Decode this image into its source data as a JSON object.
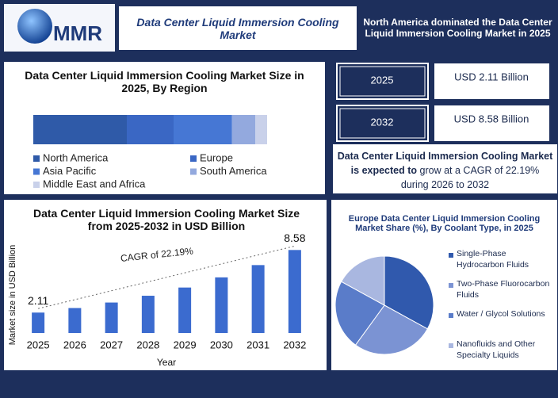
{
  "header": {
    "logo": "MMR",
    "title": "Data Center Liquid Immersion Cooling Market",
    "highlight": "North America dominated the Data Center Liquid Immersion Cooling Market  in 2025"
  },
  "stats": [
    {
      "year": "2025",
      "value": "USD 2.11 Billion"
    },
    {
      "year": "2032",
      "value": "USD 8.58 Billion"
    }
  ],
  "cagr_note": {
    "bold": "Data Center Liquid Immersion Cooling Market is expected to",
    "rest": "grow at a CAGR of 22.19% during 2026 to 2032"
  },
  "chart_data": [
    {
      "type": "bar",
      "orientation": "horizontal",
      "stacked": true,
      "title": "Data Center Liquid Immersion Cooling Market Size in 2025, By Region",
      "xlim": [
        0,
        100
      ],
      "series": [
        {
          "name": "North America",
          "color": "#2f5aa8",
          "values": [
            40
          ]
        },
        {
          "name": "Europe",
          "color": "#3a67c4",
          "values": [
            20
          ]
        },
        {
          "name": "Asia Pacific",
          "color": "#4677d4",
          "values": [
            25
          ]
        },
        {
          "name": "South America",
          "color": "#93a9de",
          "values": [
            10
          ]
        },
        {
          "name": "Middle East and Africa",
          "color": "#c9d1ea",
          "values": [
            5
          ]
        }
      ]
    },
    {
      "type": "bar",
      "title": "Data Center Liquid Immersion Cooling Market Size from 2025-2032 in USD Billion",
      "x_label": "Year",
      "y_label": "Market size in USD Billion",
      "categories": [
        "2025",
        "2026",
        "2027",
        "2028",
        "2029",
        "2030",
        "2031",
        "2032"
      ],
      "values": [
        2.11,
        2.58,
        3.15,
        3.85,
        4.7,
        5.75,
        7.02,
        8.58
      ],
      "value_labels": [
        "2.11",
        null,
        null,
        null,
        null,
        null,
        null,
        "8.58"
      ],
      "color": "#3b6bcf",
      "ylim": [
        0,
        10
      ],
      "annotation": "CAGR of 22.19%"
    },
    {
      "type": "pie",
      "title": "Europe Data Center Liquid Immersion Cooling Market  Share (%), By Coolant Type, in 2025",
      "labels": [
        "Single-Phase Hydrocarbon Fluids",
        "Two-Phase Fluorocarbon Fluids",
        "Water / Glycol Solutions",
        "Nanofluids and Other Specialty Liquids"
      ],
      "values": [
        33,
        27,
        23,
        17
      ],
      "colors": [
        "#3059ad",
        "#7b93d3",
        "#5a7cc9",
        "#a9b7e0"
      ]
    }
  ]
}
